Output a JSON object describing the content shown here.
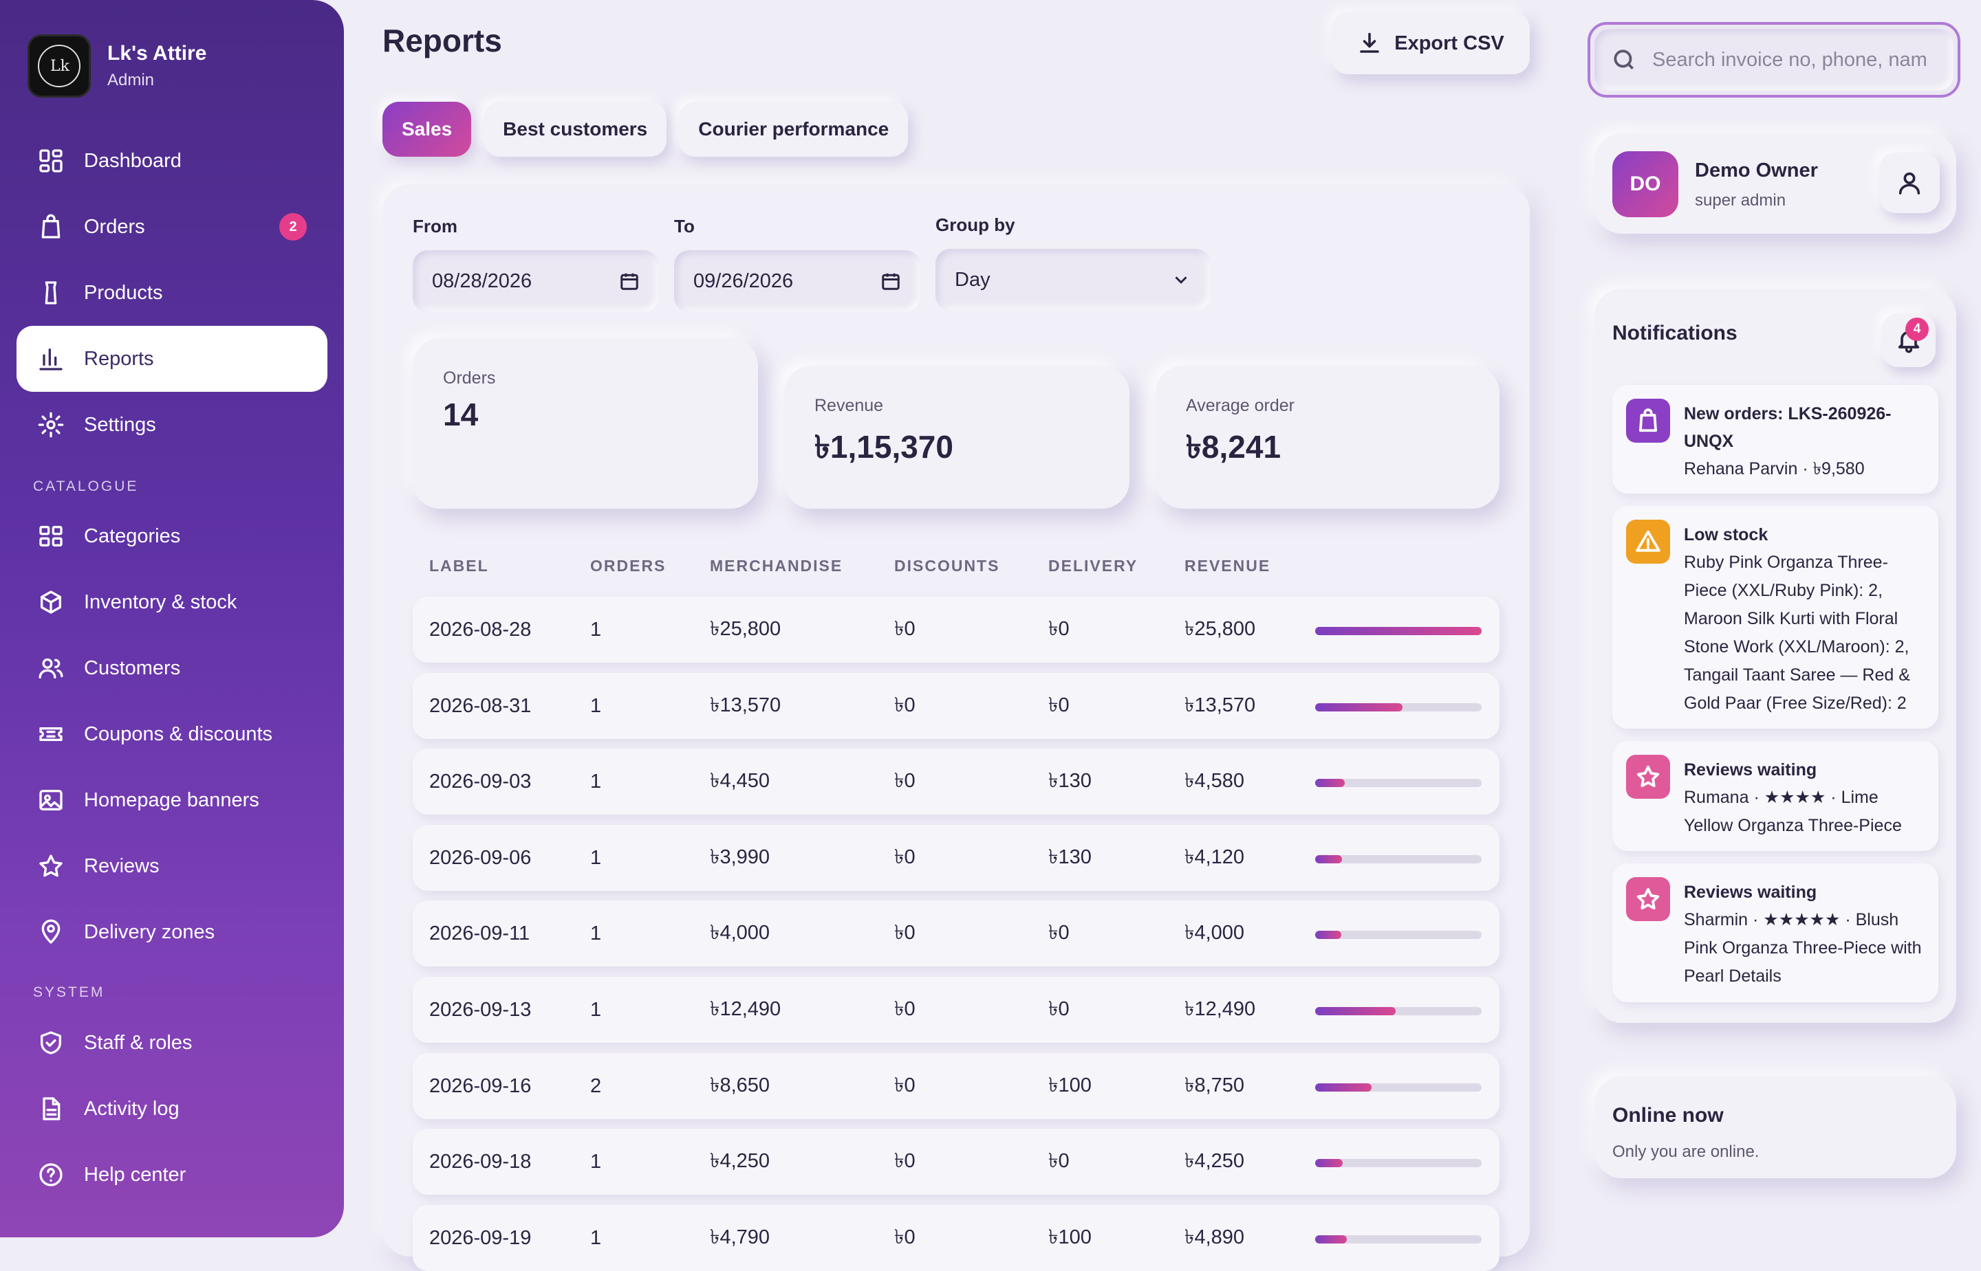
{
  "brand": {
    "name": "Lk's Attire",
    "role": "Admin"
  },
  "sidebar": {
    "items": [
      {
        "label": "Dashboard",
        "icon": "dashboard-icon"
      },
      {
        "label": "Orders",
        "icon": "shopping-bag-icon",
        "badge": "2"
      },
      {
        "label": "Products",
        "icon": "shirt-icon"
      },
      {
        "label": "Reports",
        "icon": "bar-chart-icon",
        "active": true
      },
      {
        "label": "Settings",
        "icon": "gear-icon"
      }
    ],
    "catalogue_heading": "CATALOGUE",
    "catalogue": [
      {
        "label": "Categories",
        "icon": "grid-icon"
      },
      {
        "label": "Inventory & stock",
        "icon": "box-icon"
      },
      {
        "label": "Customers",
        "icon": "users-icon"
      },
      {
        "label": "Coupons & discounts",
        "icon": "ticket-icon"
      },
      {
        "label": "Homepage banners",
        "icon": "image-icon"
      },
      {
        "label": "Reviews",
        "icon": "star-icon"
      },
      {
        "label": "Delivery zones",
        "icon": "map-pin-icon"
      }
    ],
    "system_heading": "SYSTEM",
    "system": [
      {
        "label": "Staff & roles",
        "icon": "shield-icon"
      },
      {
        "label": "Activity log",
        "icon": "document-icon"
      },
      {
        "label": "Help center",
        "icon": "help-icon"
      }
    ]
  },
  "header": {
    "title": "Reports",
    "export_label": "Export CSV"
  },
  "tabs": [
    "Sales",
    "Best customers",
    "Courier performance"
  ],
  "filters": {
    "from_label": "From",
    "from_value": "08/28/2026",
    "to_label": "To",
    "to_value": "09/26/2026",
    "group_label": "Group by",
    "group_value": "Day"
  },
  "stats": [
    {
      "label": "Orders",
      "value": "14"
    },
    {
      "label": "Revenue",
      "value": "৳1,15,370"
    },
    {
      "label": "Average order",
      "value": "৳8,241"
    }
  ],
  "table": {
    "headers": [
      "LABEL",
      "ORDERS",
      "MERCHANDISE",
      "DISCOUNTS",
      "DELIVERY",
      "REVENUE"
    ],
    "rows": [
      {
        "label": "2026-08-28",
        "orders": "1",
        "merchandise": "৳25,800",
        "discounts": "৳0",
        "delivery": "৳0",
        "revenue": "৳25,800",
        "share": 1.0
      },
      {
        "label": "2026-08-31",
        "orders": "1",
        "merchandise": "৳13,570",
        "discounts": "৳0",
        "delivery": "৳0",
        "revenue": "৳13,570",
        "share": 0.526
      },
      {
        "label": "2026-09-03",
        "orders": "1",
        "merchandise": "৳4,450",
        "discounts": "৳0",
        "delivery": "৳130",
        "revenue": "৳4,580",
        "share": 0.178
      },
      {
        "label": "2026-09-06",
        "orders": "1",
        "merchandise": "৳3,990",
        "discounts": "৳0",
        "delivery": "৳130",
        "revenue": "৳4,120",
        "share": 0.16
      },
      {
        "label": "2026-09-11",
        "orders": "1",
        "merchandise": "৳4,000",
        "discounts": "৳0",
        "delivery": "৳0",
        "revenue": "৳4,000",
        "share": 0.155
      },
      {
        "label": "2026-09-13",
        "orders": "1",
        "merchandise": "৳12,490",
        "discounts": "৳0",
        "delivery": "৳0",
        "revenue": "৳12,490",
        "share": 0.484
      },
      {
        "label": "2026-09-16",
        "orders": "2",
        "merchandise": "৳8,650",
        "discounts": "৳0",
        "delivery": "৳100",
        "revenue": "৳8,750",
        "share": 0.339
      },
      {
        "label": "2026-09-18",
        "orders": "1",
        "merchandise": "৳4,250",
        "discounts": "৳0",
        "delivery": "৳0",
        "revenue": "৳4,250",
        "share": 0.165
      },
      {
        "label": "2026-09-19",
        "orders": "1",
        "merchandise": "৳4,790",
        "discounts": "৳0",
        "delivery": "৳100",
        "revenue": "৳4,890",
        "share": 0.19
      }
    ]
  },
  "search": {
    "placeholder": "Search invoice no, phone, nam"
  },
  "user": {
    "initials": "DO",
    "name": "Demo Owner",
    "role": "super admin"
  },
  "notifications": {
    "title": "Notifications",
    "count": "4",
    "items": [
      {
        "title": "New orders: LKS-260926-UNQX",
        "body": "Rehana Parvin · ৳9,580",
        "icon": "shopping-bag-icon",
        "color": "#8a3fc4"
      },
      {
        "title": "Low stock",
        "body": "Ruby Pink Organza Three-Piece (XXL/Ruby Pink): 2, Maroon Silk Kurti with Floral Stone Work (XXL/Maroon): 2, Tangail Taant Saree — Red & Gold Paar (Free Size/Red): 2",
        "icon": "warning-icon",
        "color": "#f0a020"
      },
      {
        "title": "Reviews waiting",
        "body": "Rumana · ★★★★ · Lime Yellow Organza Three-Piece",
        "icon": "star-icon",
        "color": "#e05a9a"
      },
      {
        "title": "Reviews waiting",
        "body": "Sharmin · ★★★★★ · Blush Pink Organza Three-Piece with Pearl Details",
        "icon": "star-icon",
        "color": "#e05a9a"
      }
    ]
  },
  "online": {
    "title": "Online now",
    "subtitle": "Only you are online."
  }
}
